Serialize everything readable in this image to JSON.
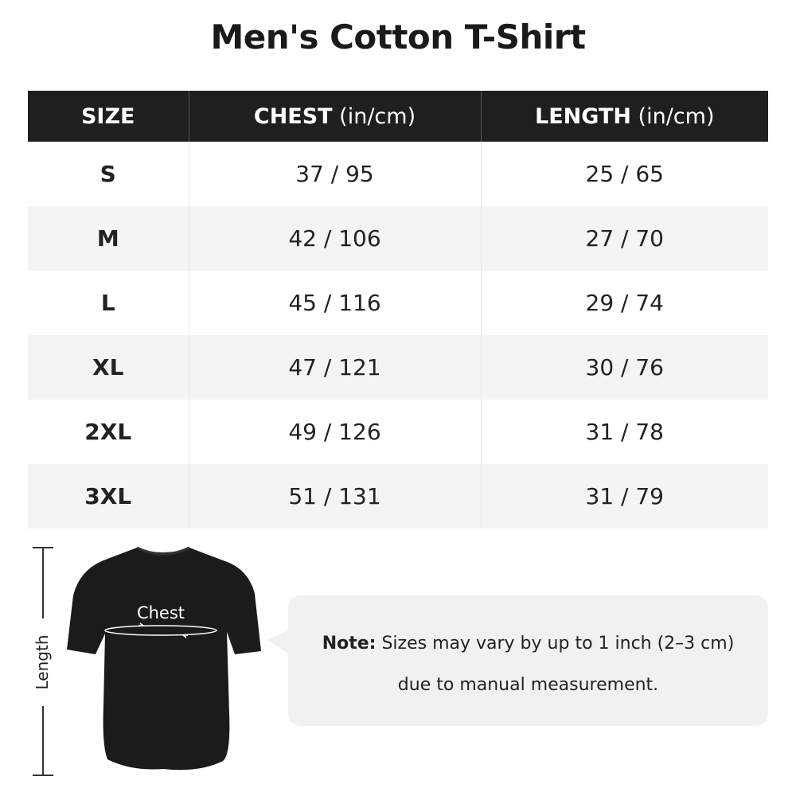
{
  "title": "Men's Cotton T-Shirt",
  "table": {
    "headers": [
      {
        "label": "SIZE",
        "unit": ""
      },
      {
        "label": "CHEST",
        "unit": " (in/cm)"
      },
      {
        "label": "LENGTH",
        "unit": " (in/cm)"
      }
    ],
    "rows": [
      {
        "size": "S",
        "chest": "37 / 95",
        "length": "25 / 65"
      },
      {
        "size": "M",
        "chest": "42 / 106",
        "length": "27 / 70"
      },
      {
        "size": "L",
        "chest": "45 / 116",
        "length": "29 / 74"
      },
      {
        "size": "XL",
        "chest": "47 / 121",
        "length": "30 / 76"
      },
      {
        "size": "2XL",
        "chest": "49 / 126",
        "length": "31 / 78"
      },
      {
        "size": "3XL",
        "chest": "51 / 131",
        "length": "31 / 79"
      }
    ]
  },
  "diagram": {
    "chest_label": "Chest",
    "length_label": "Length",
    "shirt_color": "#1b1b1b"
  },
  "note": {
    "prefix": "Note:",
    "line1": " Sizes may vary by up to 1 inch (2–3 cm)",
    "line2": "due to manual measurement."
  }
}
